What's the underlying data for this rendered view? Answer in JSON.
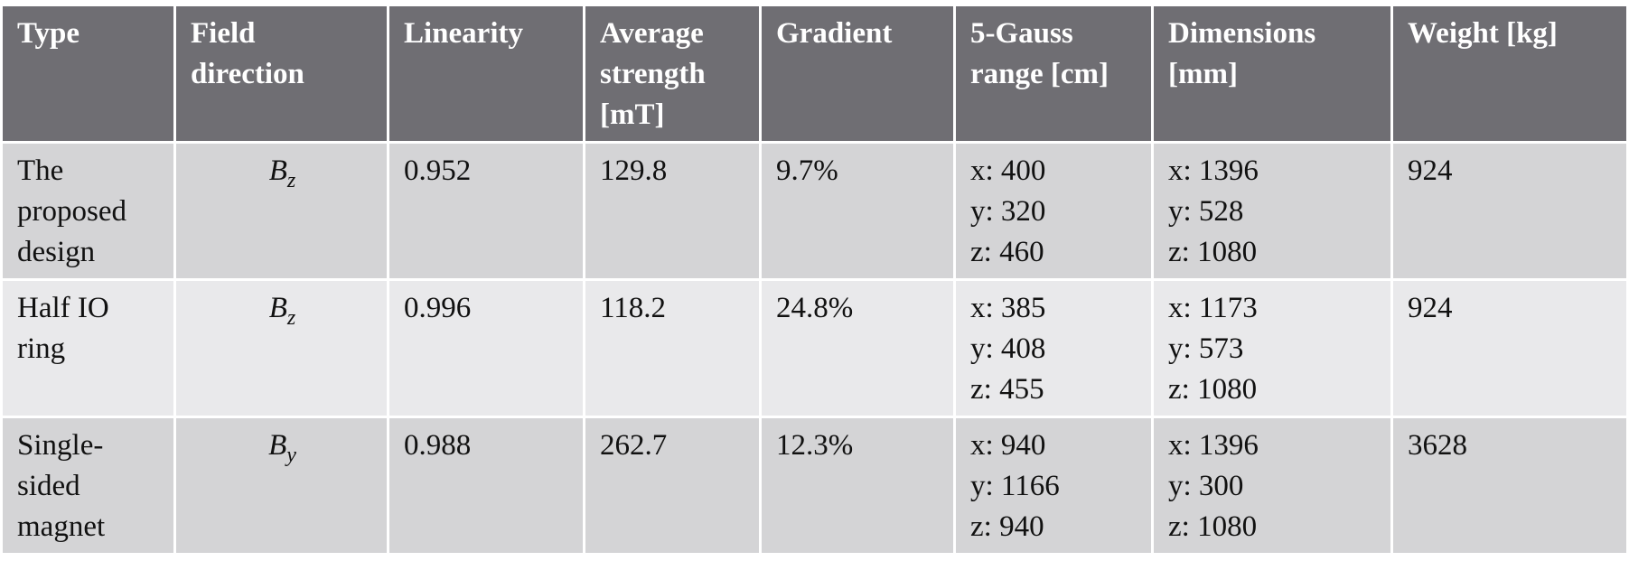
{
  "table": {
    "header": [
      "Type",
      "Field direction",
      "Linearity",
      "Average strength [mT]",
      "Gradient",
      "5-Gauss range [cm]",
      "Dimensions [mm]",
      "Weight [kg]"
    ],
    "rows": [
      [
        [
          "The proposed design"
        ],
        {
          "base": "B",
          "sub": "z"
        },
        [
          "0.952"
        ],
        [
          "129.8"
        ],
        [
          "9.7%"
        ],
        [
          "x: 400",
          "y: 320",
          "z: 460"
        ],
        [
          "x: 1396",
          "y: 528",
          "z: 1080"
        ],
        [
          "924"
        ]
      ],
      [
        [
          "Half IO ring"
        ],
        {
          "base": "B",
          "sub": "z"
        },
        [
          "0.996"
        ],
        [
          "118.2"
        ],
        [
          "24.8%"
        ],
        [
          "x: 385",
          "y: 408",
          "z: 455"
        ],
        [
          "x: 1173",
          "y: 573",
          "z: 1080"
        ],
        [
          "924"
        ]
      ],
      [
        [
          "Single-sided magnet"
        ],
        {
          "base": "B",
          "sub": "y"
        },
        [
          "0.988"
        ],
        [
          "262.7"
        ],
        [
          "12.3%"
        ],
        [
          "x: 940",
          "y: 1166",
          "z: 940"
        ],
        [
          "x: 1396",
          "y: 300",
          "z: 1080"
        ],
        [
          "3628"
        ]
      ]
    ]
  }
}
